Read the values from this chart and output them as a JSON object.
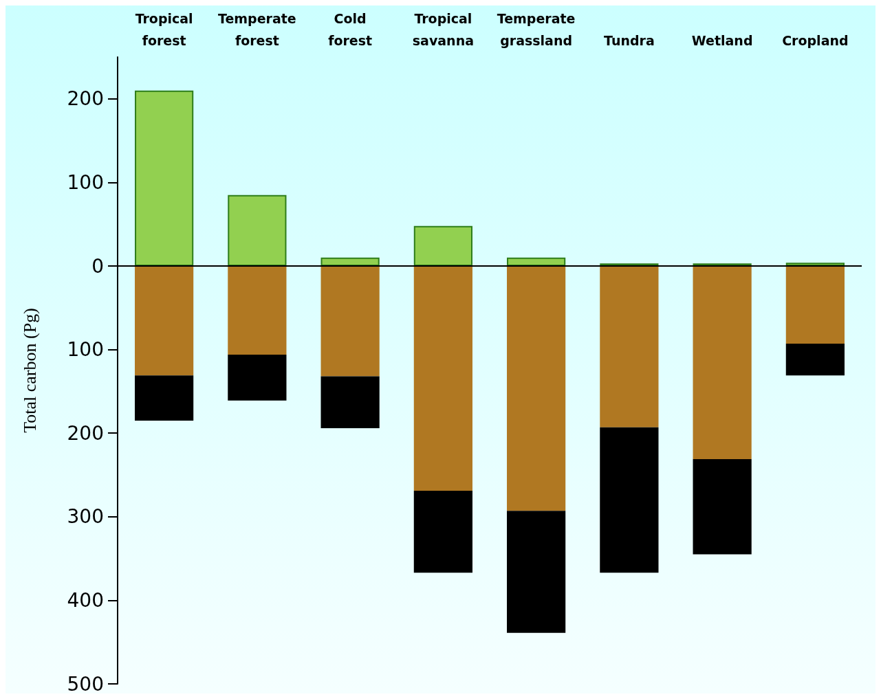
{
  "chart_data": {
    "type": "bar",
    "stacked": true,
    "ylabel": "Total carbon (Pg)",
    "categories": [
      "Tropical forest",
      "Temperate forest",
      "Cold forest",
      "Tropical savanna",
      "Temperate grassland",
      "Tundra",
      "Wetland",
      "Cropland"
    ],
    "series": [
      {
        "color": "#92d050",
        "values": [
          210,
          85,
          10,
          48,
          10,
          3,
          3,
          4
        ]
      },
      {
        "color": "#b07822",
        "values": [
          -131,
          -106,
          -132,
          -269,
          -293,
          -193,
          -231,
          -93
        ]
      },
      {
        "color": "#000000",
        "values": [
          -54,
          -55,
          -62,
          -98,
          -146,
          -174,
          -114,
          -38
        ]
      }
    ],
    "ylim": [
      -500,
      250
    ],
    "yticks": [
      {
        "value": -500,
        "label": "500"
      },
      {
        "value": -400,
        "label": "400"
      },
      {
        "value": -300,
        "label": "300"
      },
      {
        "value": -200,
        "label": "200"
      },
      {
        "value": -100,
        "label": "100"
      },
      0,
      100,
      200
    ],
    "ref_lines": [
      {
        "axis": "y",
        "value": 0,
        "color": "#000000"
      }
    ],
    "grid": false
  }
}
